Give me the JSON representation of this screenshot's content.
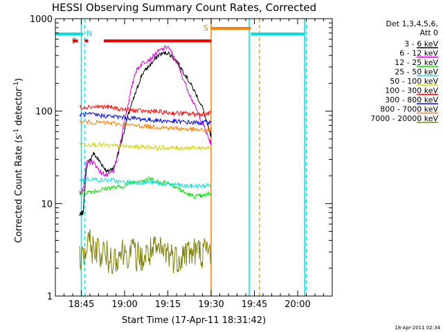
{
  "chart_data": {
    "type": "line",
    "title": "HESSI Observing Summary Count Rates, Corrected",
    "xlabel": "Start Time (17-Apr-11 18:31:42)",
    "ylabel_main": "Corrected Count Rate (s",
    "ylabel_sup1": "-1",
    "ylabel_mid": " detector",
    "ylabel_sup2": "-1",
    "ylabel_end": ")",
    "y_scale": "log",
    "ylim": [
      1,
      1000
    ],
    "xlim_minutes": [
      18.6,
      20.2
    ],
    "x_ticks": [
      {
        "label": "18:45",
        "minutes": 18.75
      },
      {
        "label": "19:00",
        "minutes": 19.0
      },
      {
        "label": "19:15",
        "minutes": 19.25
      },
      {
        "label": "19:30",
        "minutes": 19.5
      },
      {
        "label": "19:45",
        "minutes": 19.75
      },
      {
        "label": "20:00",
        "minutes": 20.0
      }
    ],
    "y_ticks": [
      {
        "label": "1",
        "value": 1
      },
      {
        "label": "10",
        "value": 10
      },
      {
        "label": "100",
        "value": 100
      },
      {
        "label": "1000",
        "value": 1000
      }
    ],
    "legend_header_1": "Det 1,3,4,5,6,",
    "legend_header_2": "Att 0",
    "legend_position": "right",
    "series": [
      {
        "name": "3 - 6 keV",
        "color": "#000000",
        "points": [
          [
            18.74,
            7.5
          ],
          [
            18.76,
            8
          ],
          [
            18.78,
            25
          ],
          [
            18.82,
            35
          ],
          [
            18.86,
            28
          ],
          [
            18.9,
            22
          ],
          [
            18.94,
            25
          ],
          [
            18.98,
            45
          ],
          [
            19.02,
            90
          ],
          [
            19.06,
            150
          ],
          [
            19.1,
            250
          ],
          [
            19.15,
            320
          ],
          [
            19.2,
            410
          ],
          [
            19.25,
            430
          ],
          [
            19.3,
            350
          ],
          [
            19.35,
            250
          ],
          [
            19.4,
            170
          ],
          [
            19.45,
            110
          ],
          [
            19.49,
            60
          ],
          [
            19.5,
            55
          ]
        ]
      },
      {
        "name": "6 - 12 keV",
        "color": "#e000e0",
        "points": [
          [
            18.74,
            13
          ],
          [
            18.76,
            14
          ],
          [
            18.78,
            28
          ],
          [
            18.82,
            28
          ],
          [
            18.86,
            22
          ],
          [
            18.9,
            20
          ],
          [
            18.94,
            23
          ],
          [
            18.98,
            50
          ],
          [
            19.02,
            120
          ],
          [
            19.06,
            260
          ],
          [
            19.1,
            330
          ],
          [
            19.15,
            370
          ],
          [
            19.2,
            450
          ],
          [
            19.25,
            500
          ],
          [
            19.3,
            340
          ],
          [
            19.35,
            200
          ],
          [
            19.4,
            120
          ],
          [
            19.45,
            75
          ],
          [
            19.49,
            48
          ],
          [
            19.5,
            45
          ]
        ]
      },
      {
        "name": "12 - 25 keV",
        "color": "#00e000",
        "points": [
          [
            18.74,
            13
          ],
          [
            18.8,
            13.5
          ],
          [
            18.86,
            14
          ],
          [
            18.92,
            15
          ],
          [
            18.98,
            15
          ],
          [
            19.04,
            17
          ],
          [
            19.1,
            18
          ],
          [
            19.15,
            18.5
          ],
          [
            19.2,
            17
          ],
          [
            19.25,
            17
          ],
          [
            19.3,
            15
          ],
          [
            19.35,
            13
          ],
          [
            19.4,
            12
          ],
          [
            19.45,
            12
          ],
          [
            19.5,
            13
          ]
        ]
      },
      {
        "name": "25 - 50 keV",
        "color": "#00e0e0",
        "points": [
          [
            18.74,
            18
          ],
          [
            18.8,
            18.5
          ],
          [
            18.86,
            18
          ],
          [
            18.92,
            18
          ],
          [
            18.98,
            17
          ],
          [
            19.04,
            17
          ],
          [
            19.1,
            17
          ],
          [
            19.15,
            17
          ],
          [
            19.2,
            16.5
          ],
          [
            19.25,
            16
          ],
          [
            19.3,
            16
          ],
          [
            19.35,
            15.5
          ],
          [
            19.4,
            15.5
          ],
          [
            19.45,
            15.5
          ],
          [
            19.5,
            16
          ]
        ]
      },
      {
        "name": "50 - 100 keV",
        "color": "#d4d400",
        "points": [
          [
            18.74,
            44
          ],
          [
            18.8,
            44
          ],
          [
            18.86,
            43
          ],
          [
            18.92,
            42
          ],
          [
            18.98,
            42
          ],
          [
            19.04,
            41
          ],
          [
            19.1,
            41
          ],
          [
            19.15,
            41
          ],
          [
            19.2,
            40
          ],
          [
            19.25,
            40
          ],
          [
            19.3,
            40
          ],
          [
            19.35,
            40
          ],
          [
            19.4,
            40
          ],
          [
            19.45,
            40
          ],
          [
            19.5,
            40
          ]
        ]
      },
      {
        "name": "100 - 300 keV",
        "color": "#ff0000",
        "points": [
          [
            18.74,
            110
          ],
          [
            18.8,
            112
          ],
          [
            18.86,
            112
          ],
          [
            18.92,
            110
          ],
          [
            18.98,
            105
          ],
          [
            19.04,
            102
          ],
          [
            19.1,
            100
          ],
          [
            19.15,
            100
          ],
          [
            19.2,
            98
          ],
          [
            19.25,
            96
          ],
          [
            19.3,
            95
          ],
          [
            19.35,
            94
          ],
          [
            19.4,
            93
          ],
          [
            19.45,
            93
          ],
          [
            19.5,
            95
          ]
        ]
      },
      {
        "name": "300 - 800 keV",
        "color": "#0000ff",
        "points": [
          [
            18.74,
            92
          ],
          [
            18.8,
            92
          ],
          [
            18.86,
            90
          ],
          [
            18.92,
            88
          ],
          [
            18.98,
            86
          ],
          [
            19.04,
            84
          ],
          [
            19.1,
            82
          ],
          [
            19.15,
            80
          ],
          [
            19.2,
            79
          ],
          [
            19.25,
            78
          ],
          [
            19.3,
            77
          ],
          [
            19.35,
            76
          ],
          [
            19.4,
            75
          ],
          [
            19.45,
            75
          ],
          [
            19.5,
            76
          ]
        ]
      },
      {
        "name": "800 - 7000 keV",
        "color": "#ff8000",
        "points": [
          [
            18.74,
            76
          ],
          [
            18.8,
            76
          ],
          [
            18.86,
            75
          ],
          [
            18.92,
            74
          ],
          [
            18.98,
            72
          ],
          [
            19.04,
            70
          ],
          [
            19.1,
            69
          ],
          [
            19.15,
            68
          ],
          [
            19.2,
            67
          ],
          [
            19.25,
            66
          ],
          [
            19.3,
            65
          ],
          [
            19.35,
            64
          ],
          [
            19.4,
            63
          ],
          [
            19.45,
            62
          ],
          [
            19.5,
            63
          ]
        ]
      },
      {
        "name": "7000 - 20000 keV",
        "color": "#808000",
        "points": [
          [
            18.74,
            2.5
          ],
          [
            18.8,
            3.5
          ],
          [
            18.86,
            3
          ],
          [
            18.92,
            2.5
          ],
          [
            18.98,
            3
          ],
          [
            19.04,
            3
          ],
          [
            19.1,
            2.5
          ],
          [
            19.15,
            3
          ],
          [
            19.2,
            3
          ],
          [
            19.25,
            3
          ],
          [
            19.3,
            2.5
          ],
          [
            19.35,
            3
          ],
          [
            19.4,
            3
          ],
          [
            19.45,
            3
          ],
          [
            19.5,
            3
          ]
        ]
      }
    ],
    "annotations": {
      "f_label": "F",
      "n_label": "N",
      "s_label": "S",
      "f_bars": [
        [
          18.73,
          18.7
        ],
        [
          18.77,
          18.79
        ],
        [
          18.88,
          19.5
        ]
      ],
      "n_bar_start": 18.6,
      "n_bar_end": 18.76,
      "n_bar2": [
        19.73,
        20.04
      ],
      "s_bar": [
        19.5,
        19.73
      ],
      "cyan_lines": [
        18.75,
        19.72,
        20.04
      ],
      "cyan_dashed": [
        18.77,
        20.05
      ],
      "orange_lines": [
        19.5
      ],
      "orange_dashed": [
        19.78
      ]
    },
    "footer_date": "18-Apr-2011 02:34"
  }
}
